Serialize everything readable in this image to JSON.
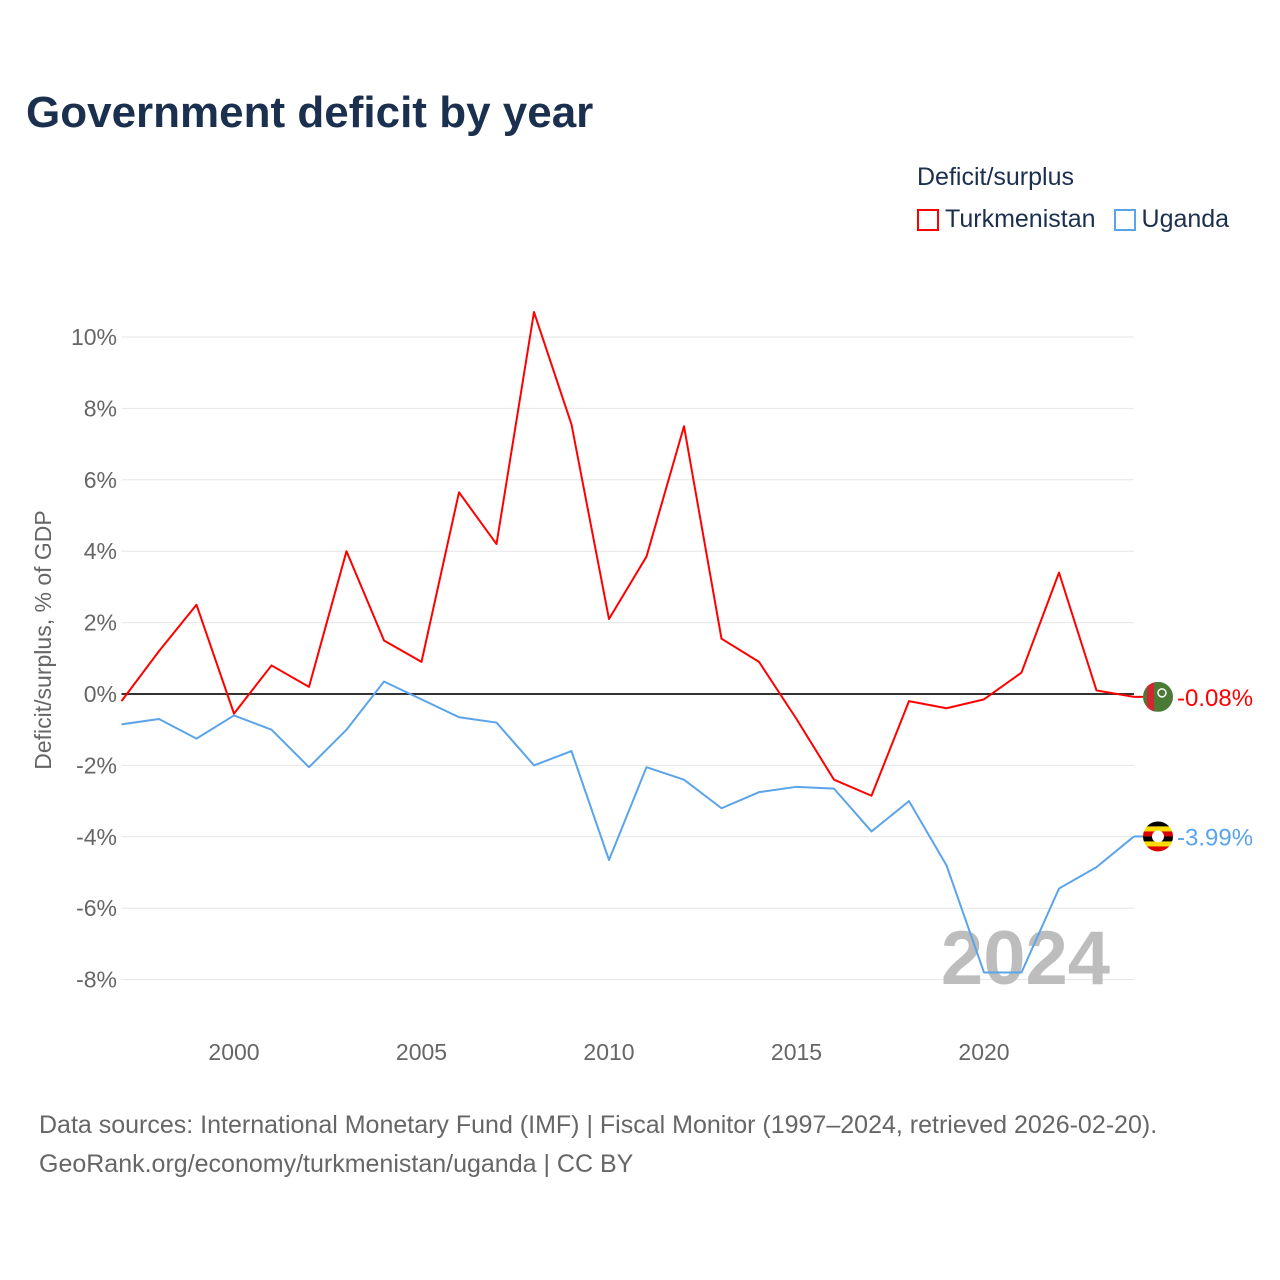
{
  "title": "Government deficit by year",
  "legend": {
    "title": "Deficit/surplus",
    "items": [
      {
        "label": "Turkmenistan",
        "color": "#ff0000"
      },
      {
        "label": "Uganda",
        "color": "#5ba4ea"
      }
    ]
  },
  "footer": {
    "line1": "Data sources: International Monetary Fund (IMF) | Fiscal Monitor (1997–2024, retrieved 2026-02-20).",
    "line2": "GeoRank.org/economy/turkmenistan/uganda | CC BY"
  },
  "chart_data": {
    "type": "line",
    "title": "Government deficit by year",
    "xlabel": "",
    "ylabel": "Deficit/surplus, % of GDP",
    "watermark": "2024",
    "xlim": [
      1997,
      2024
    ],
    "ylim": [
      -9,
      11
    ],
    "yticks": [
      -8,
      -6,
      -4,
      -2,
      0,
      2,
      4,
      6,
      8,
      10
    ],
    "ytick_labels": [
      "-8%",
      "-6%",
      "-4%",
      "-2%",
      "0%",
      "2%",
      "4%",
      "6%",
      "8%",
      "10%"
    ],
    "xticks": [
      2000,
      2005,
      2010,
      2015,
      2020
    ],
    "xtick_labels": [
      "2000",
      "2005",
      "2010",
      "2015",
      "2020"
    ],
    "grid": true,
    "legend_position": "top-right",
    "x": [
      1997,
      1998,
      1999,
      2000,
      2001,
      2002,
      2003,
      2004,
      2005,
      2006,
      2007,
      2008,
      2009,
      2010,
      2011,
      2012,
      2013,
      2014,
      2015,
      2016,
      2017,
      2018,
      2019,
      2020,
      2021,
      2022,
      2023,
      2024
    ],
    "series": [
      {
        "name": "Turkmenistan",
        "color": "#ff0000",
        "end_label": "-0.08%",
        "flag": "turkmenistan-flag",
        "values": [
          -0.2,
          1.2,
          2.5,
          -0.55,
          0.8,
          0.2,
          4.0,
          1.5,
          0.9,
          5.65,
          4.2,
          10.7,
          7.55,
          2.1,
          3.85,
          7.5,
          1.55,
          0.9,
          -0.7,
          -2.4,
          -2.85,
          -0.2,
          -0.4,
          -0.15,
          0.6,
          3.4,
          0.1,
          -0.08
        ]
      },
      {
        "name": "Uganda",
        "color": "#5ba4ea",
        "end_label": "-3.99%",
        "flag": "uganda-flag",
        "values": [
          -0.85,
          -0.7,
          -1.25,
          -0.6,
          -1.0,
          -2.05,
          -1.0,
          0.35,
          -0.15,
          -0.65,
          -0.8,
          -2.0,
          -1.6,
          -4.65,
          -2.05,
          -2.4,
          -3.2,
          -2.75,
          -2.6,
          -2.65,
          -3.85,
          -3.0,
          -4.8,
          -7.8,
          -7.8,
          -5.45,
          -4.85,
          -3.99
        ]
      }
    ]
  }
}
